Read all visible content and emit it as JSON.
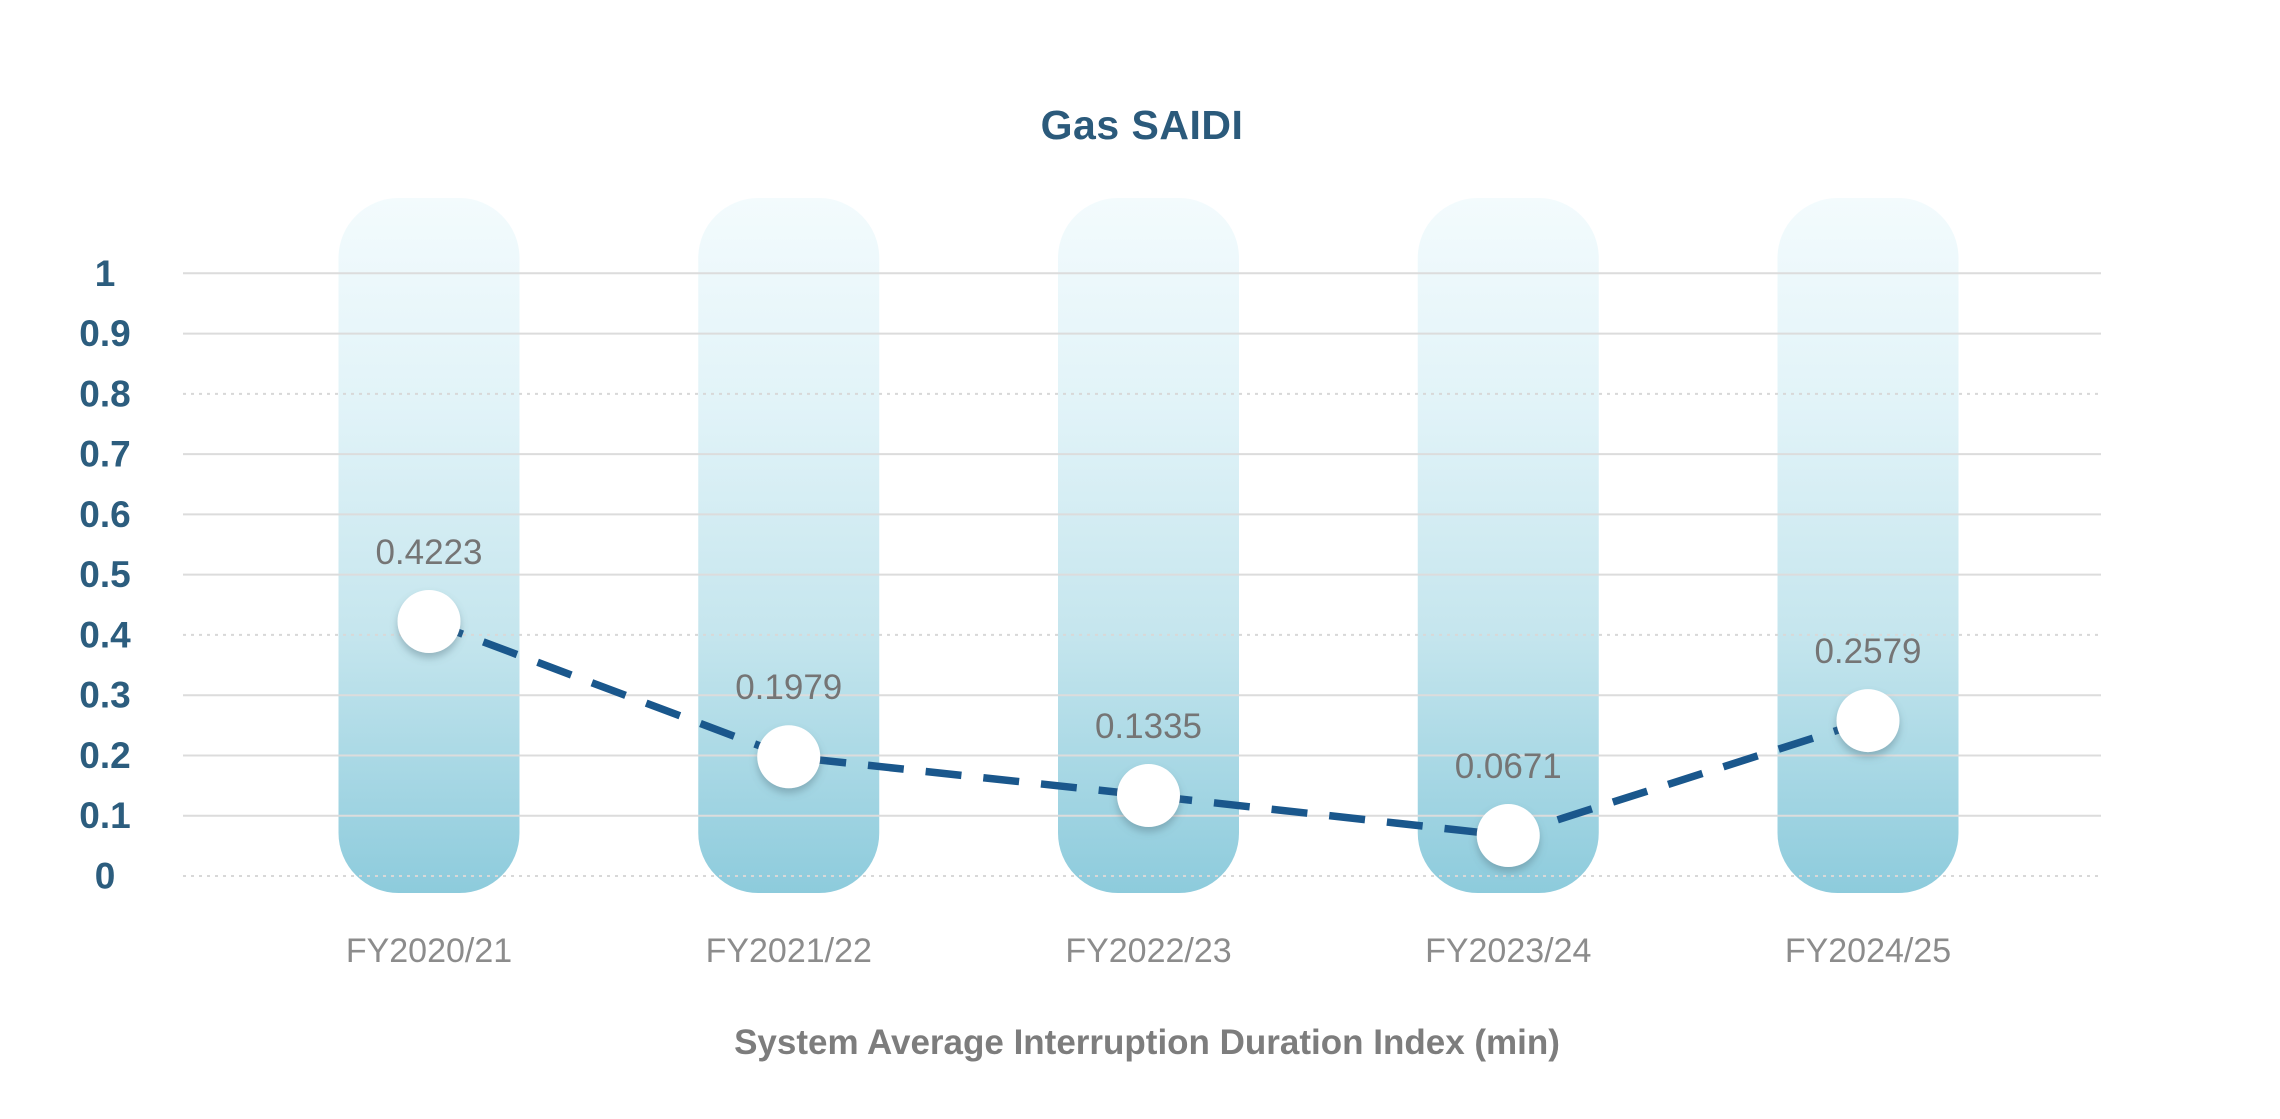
{
  "chart_data": {
    "type": "line",
    "title": "Gas SAIDI",
    "xlabel": "System Average Interruption Duration Index (min)",
    "categories": [
      "FY2020/21",
      "FY2021/22",
      "FY2022/23",
      "FY2023/24",
      "FY2024/25"
    ],
    "values": [
      0.4223,
      0.1979,
      0.1335,
      0.0671,
      0.2579
    ],
    "value_labels": [
      "0.4223",
      "0.1979",
      "0.1335",
      "0.0671",
      "0.2579"
    ],
    "ylim": [
      0,
      1
    ],
    "ytick_labels": [
      "1",
      "0.9",
      "0.8",
      "0.7",
      "0.6",
      "0.5",
      "0.4",
      "0.3",
      "0.2",
      "0.1",
      "0"
    ],
    "ytick_values": [
      1,
      0.9,
      0.8,
      0.7,
      0.6,
      0.5,
      0.4,
      0.3,
      0.2,
      0.1,
      0
    ],
    "grid": "horizontal",
    "legend": "none",
    "line_style": "dashed",
    "marker": "white-circle",
    "background_bars": "full-height-gradient-pills",
    "colors": {
      "title": "#2B5A7B",
      "axis_tick_text": "#2C5D7E",
      "value_label_text": "#757575",
      "category_text": "#8C8C8C",
      "axis_title_text": "#7D7D7D",
      "line": "#1A578C",
      "grid_line": "#DCDCDC",
      "grid_line_dotted": "#D8D8D8",
      "marker_fill": "#FFFFFF",
      "bar_gradient_top": "#F3FBFD",
      "bar_gradient_upper_mid": "#E1F3F8",
      "bar_gradient_lower_mid": "#C6E6EE",
      "bar_gradient_bottom": "#8DCBDC"
    }
  }
}
